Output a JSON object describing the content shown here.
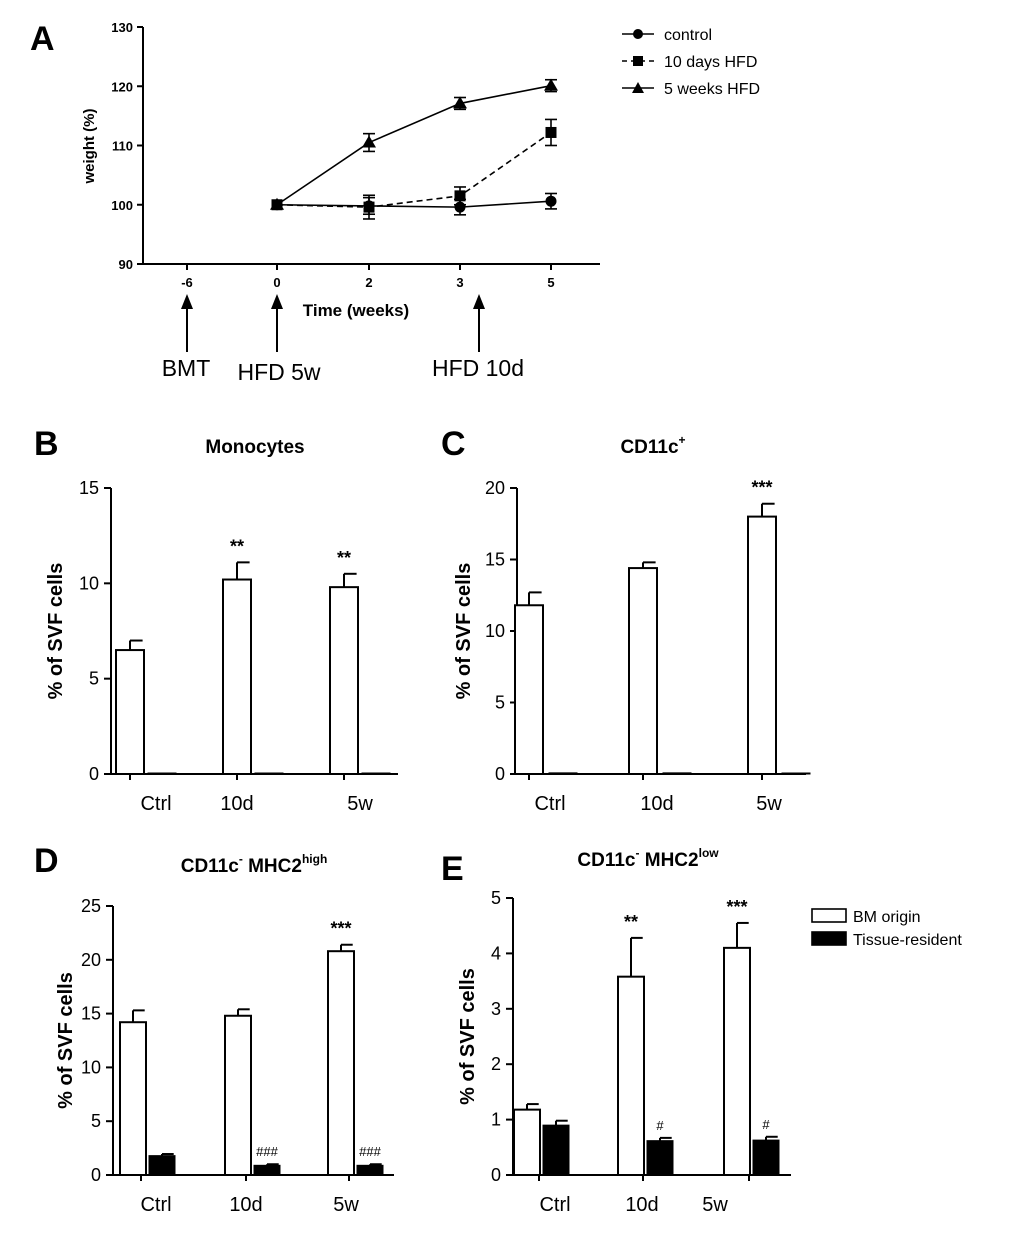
{
  "figure_label": "Multi-panel scientific figure: weight time-course and SVF cell percentages",
  "panels": {
    "A": {
      "letter": "A"
    },
    "B": {
      "letter": "B"
    },
    "C": {
      "letter": "C"
    },
    "D": {
      "letter": "D"
    },
    "E": {
      "letter": "E"
    }
  },
  "colors": {
    "ink": "#000000",
    "bm_origin_fill": "#ffffff",
    "tissue_resident_fill": "#000000"
  },
  "chart_data": [
    {
      "id": "A",
      "type": "line",
      "title": "",
      "xlabel": "Time (weeks)",
      "ylabel": "weight (%)",
      "x_ticks": [
        "-6",
        "0",
        "2",
        "3",
        "5"
      ],
      "y_ticks": [
        "90",
        "100",
        "110",
        "120",
        "130"
      ],
      "ylim": [
        90,
        130
      ],
      "legend_position": "top-right",
      "series": [
        {
          "name": "control",
          "marker": "circle",
          "dash": "solid",
          "x": [
            "0",
            "2",
            "3",
            "5"
          ],
          "values": [
            100,
            99.8,
            99.6,
            100.6
          ],
          "errors": [
            0,
            1.4,
            1.3,
            1.3
          ]
        },
        {
          "name": "10 days HFD",
          "marker": "square",
          "dash": "dashed",
          "x": [
            "0",
            "2",
            "3",
            "5"
          ],
          "values": [
            100,
            99.6,
            101.5,
            112.2
          ],
          "errors": [
            0,
            2.0,
            1.5,
            2.2
          ]
        },
        {
          "name": "5 weeks HFD",
          "marker": "triangle",
          "dash": "solid",
          "x": [
            "0",
            "2",
            "3",
            "5"
          ],
          "values": [
            100,
            110.5,
            117.1,
            120.1
          ],
          "errors": [
            0,
            1.5,
            1.0,
            1.0
          ]
        }
      ],
      "annotations": [
        {
          "label": "BMT",
          "at": "-6"
        },
        {
          "label": "HFD 5w",
          "at": "0"
        },
        {
          "label": "HFD 10d",
          "at": "3.3"
        }
      ]
    },
    {
      "id": "B",
      "type": "bar",
      "title": "Monocytes",
      "title_sup": "",
      "xlabel": "",
      "ylabel": "% of SVF cells",
      "categories": [
        "Ctrl",
        "10d",
        "5w"
      ],
      "y_ticks": [
        "0",
        "5",
        "10",
        "15"
      ],
      "ylim": [
        0,
        15
      ],
      "series": [
        {
          "name": "BM origin",
          "values": [
            6.5,
            10.2,
            9.8
          ],
          "errors": [
            0.5,
            0.9,
            0.7
          ],
          "labels": [
            "",
            "**",
            "**"
          ]
        },
        {
          "name": "Tissue-resident",
          "values": [
            0.03,
            0.05,
            0.03
          ],
          "errors": [
            0,
            0,
            0
          ],
          "labels": [
            "",
            "",
            ""
          ]
        }
      ]
    },
    {
      "id": "C",
      "type": "bar",
      "title": "CD11c",
      "title_sup": "+",
      "xlabel": "",
      "ylabel": "% of SVF cells",
      "categories": [
        "Ctrl",
        "10d",
        "5w"
      ],
      "y_ticks": [
        "0",
        "5",
        "10",
        "15",
        "20"
      ],
      "ylim": [
        0,
        20
      ],
      "series": [
        {
          "name": "BM origin",
          "values": [
            11.8,
            14.4,
            18.0
          ],
          "errors": [
            0.9,
            0.4,
            0.9
          ],
          "labels": [
            "",
            "",
            "***"
          ]
        },
        {
          "name": "Tissue-resident",
          "values": [
            0.08,
            0.08,
            0.06
          ],
          "errors": [
            0,
            0,
            0
          ],
          "labels": [
            "",
            "",
            ""
          ]
        }
      ]
    },
    {
      "id": "D",
      "type": "bar",
      "title": "CD11c",
      "title_sup": "-",
      "title_tail": " MHC2",
      "title_tail_sup": "high",
      "xlabel": "",
      "ylabel": "% of SVF cells",
      "categories": [
        "Ctrl",
        "10d",
        "5w"
      ],
      "y_ticks": [
        "0",
        "5",
        "10",
        "15",
        "20",
        "25"
      ],
      "ylim": [
        0,
        25
      ],
      "series": [
        {
          "name": "BM origin",
          "values": [
            14.2,
            14.8,
            20.8
          ],
          "errors": [
            1.1,
            0.6,
            0.6
          ],
          "labels": [
            "",
            "",
            "***"
          ]
        },
        {
          "name": "Tissue-resident",
          "values": [
            1.8,
            0.9,
            0.9
          ],
          "errors": [
            0.15,
            0.1,
            0.1
          ],
          "labels": [
            "",
            "###",
            "###"
          ]
        }
      ]
    },
    {
      "id": "E",
      "type": "bar",
      "title": "CD11c",
      "title_sup": "-",
      "title_tail": " MHC2",
      "title_tail_sup": "low",
      "xlabel": "",
      "ylabel": "% of SVF cells",
      "categories": [
        "Ctrl",
        "10d",
        "5w"
      ],
      "y_ticks": [
        "0",
        "1",
        "2",
        "3",
        "4",
        "5"
      ],
      "ylim": [
        0,
        5
      ],
      "legend_position": "right",
      "legend": [
        "BM origin",
        "Tissue-resident"
      ],
      "series": [
        {
          "name": "BM origin",
          "values": [
            1.18,
            3.58,
            4.1
          ],
          "errors": [
            0.1,
            0.7,
            0.45
          ],
          "labels": [
            "",
            "**",
            "***"
          ]
        },
        {
          "name": "Tissue-resident",
          "values": [
            0.9,
            0.62,
            0.63
          ],
          "errors": [
            0.08,
            0.05,
            0.06
          ],
          "labels": [
            "",
            "#",
            "#"
          ]
        }
      ]
    }
  ]
}
